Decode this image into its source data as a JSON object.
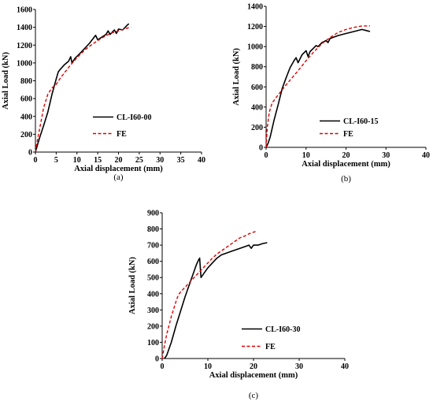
{
  "chart_data": [
    {
      "type": "line",
      "panel_caption": "(a)",
      "xlabel": "Axial displacement (mm)",
      "ylabel": "Axial Load (kN)",
      "xlim": [
        0,
        40
      ],
      "ylim": [
        0,
        1600
      ],
      "xticks": [
        0,
        5,
        10,
        15,
        20,
        25,
        30,
        35,
        40
      ],
      "yticks": [
        0,
        200,
        400,
        600,
        800,
        1000,
        1200,
        1400,
        1600
      ],
      "grid": false,
      "legend_position": "right-center",
      "series": [
        {
          "name": "CL-I60-00",
          "color": "#000000",
          "dash": "solid",
          "points": [
            [
              0,
              0
            ],
            [
              0.5,
              80
            ],
            [
              1,
              160
            ],
            [
              2,
              300
            ],
            [
              3,
              450
            ],
            [
              4,
              650
            ],
            [
              5,
              820
            ],
            [
              5.5,
              900
            ],
            [
              6,
              930
            ],
            [
              7,
              980
            ],
            [
              8,
              1020
            ],
            [
              8.5,
              1070
            ],
            [
              8.8,
              1000
            ],
            [
              9.5,
              1050
            ],
            [
              11,
              1120
            ],
            [
              13,
              1220
            ],
            [
              14.5,
              1310
            ],
            [
              15,
              1260
            ],
            [
              16,
              1290
            ],
            [
              17,
              1320
            ],
            [
              17.5,
              1360
            ],
            [
              18,
              1320
            ],
            [
              19,
              1370
            ],
            [
              19.5,
              1330
            ],
            [
              20,
              1380
            ],
            [
              21,
              1370
            ],
            [
              22,
              1420
            ],
            [
              22.5,
              1440
            ]
          ]
        },
        {
          "name": "FE",
          "color": "#e00000",
          "dash": "dashed",
          "points": [
            [
              0,
              0
            ],
            [
              0.3,
              90
            ],
            [
              1,
              260
            ],
            [
              2,
              500
            ],
            [
              3,
              650
            ],
            [
              4,
              720
            ],
            [
              5,
              760
            ],
            [
              6,
              830
            ],
            [
              8,
              950
            ],
            [
              10,
              1060
            ],
            [
              12,
              1150
            ],
            [
              14,
              1220
            ],
            [
              16,
              1280
            ],
            [
              18,
              1330
            ],
            [
              20,
              1360
            ],
            [
              22,
              1390
            ],
            [
              23,
              1400
            ]
          ]
        }
      ]
    },
    {
      "type": "line",
      "panel_caption": "(b)",
      "xlabel": "Axial displacement (mm)",
      "ylabel": "Axial Load (kN)",
      "xlim": [
        0,
        40
      ],
      "ylim": [
        0,
        1400
      ],
      "xticks": [
        0,
        10,
        20,
        30,
        40
      ],
      "yticks": [
        0,
        200,
        400,
        600,
        800,
        1000,
        1200,
        1400
      ],
      "grid": false,
      "legend_position": "right-center",
      "series": [
        {
          "name": "CL-I60-15",
          "color": "#000000",
          "dash": "solid",
          "points": [
            [
              0,
              0
            ],
            [
              0.5,
              40
            ],
            [
              1,
              100
            ],
            [
              2,
              270
            ],
            [
              3,
              420
            ],
            [
              4,
              580
            ],
            [
              5,
              690
            ],
            [
              6,
              790
            ],
            [
              7,
              860
            ],
            [
              7.5,
              890
            ],
            [
              8,
              840
            ],
            [
              9,
              920
            ],
            [
              10,
              960
            ],
            [
              10.5,
              900
            ],
            [
              11,
              950
            ],
            [
              12,
              990
            ],
            [
              12.5,
              1010
            ],
            [
              13,
              1000
            ],
            [
              14,
              1040
            ],
            [
              15,
              1060
            ],
            [
              15.5,
              1040
            ],
            [
              16,
              1080
            ],
            [
              18,
              1110
            ],
            [
              20,
              1130
            ],
            [
              22,
              1150
            ],
            [
              24,
              1170
            ],
            [
              25,
              1160
            ],
            [
              26,
              1150
            ]
          ]
        },
        {
          "name": "FE",
          "color": "#e00000",
          "dash": "dashed",
          "points": [
            [
              0,
              0
            ],
            [
              0.3,
              200
            ],
            [
              0.8,
              350
            ],
            [
              1.5,
              440
            ],
            [
              3,
              520
            ],
            [
              5,
              620
            ],
            [
              8,
              760
            ],
            [
              10,
              860
            ],
            [
              12,
              950
            ],
            [
              14,
              1030
            ],
            [
              16,
              1090
            ],
            [
              18,
              1140
            ],
            [
              20,
              1170
            ],
            [
              22,
              1190
            ],
            [
              24,
              1205
            ],
            [
              26,
              1205
            ]
          ]
        }
      ]
    },
    {
      "type": "line",
      "panel_caption": "(c)",
      "xlabel": "Axial displacement (mm)",
      "ylabel": "Axial Load  (kN)",
      "xlim": [
        0,
        40
      ],
      "ylim": [
        0,
        900
      ],
      "xticks": [
        0,
        10,
        20,
        30,
        40
      ],
      "yticks": [
        0,
        100,
        200,
        300,
        400,
        500,
        600,
        700,
        800,
        900
      ],
      "grid": false,
      "legend_position": "right-center",
      "series": [
        {
          "name": "CL-I60-30",
          "color": "#000000",
          "dash": "solid",
          "points": [
            [
              0.5,
              0
            ],
            [
              1,
              20
            ],
            [
              2,
              100
            ],
            [
              3,
              200
            ],
            [
              4,
              290
            ],
            [
              5,
              380
            ],
            [
              6,
              460
            ],
            [
              7,
              540
            ],
            [
              7.5,
              580
            ],
            [
              8,
              610
            ],
            [
              8.2,
              620
            ],
            [
              8.5,
              500
            ],
            [
              9,
              520
            ],
            [
              10,
              560
            ],
            [
              11,
              590
            ],
            [
              12,
              620
            ],
            [
              13,
              640
            ],
            [
              14,
              650
            ],
            [
              15,
              660
            ],
            [
              16,
              670
            ],
            [
              17,
              680
            ],
            [
              18,
              690
            ],
            [
              19,
              700
            ],
            [
              19.5,
              680
            ],
            [
              20,
              700
            ],
            [
              21,
              700
            ],
            [
              22,
              710
            ],
            [
              23,
              715
            ]
          ]
        },
        {
          "name": "FE",
          "color": "#e00000",
          "dash": "dashed",
          "points": [
            [
              0,
              0
            ],
            [
              0.5,
              80
            ],
            [
              1,
              150
            ],
            [
              2,
              260
            ],
            [
              3,
              350
            ],
            [
              3.5,
              390
            ],
            [
              4,
              410
            ],
            [
              5,
              440
            ],
            [
              6,
              470
            ],
            [
              7,
              500
            ],
            [
              8,
              530
            ],
            [
              9,
              560
            ],
            [
              10,
              590
            ],
            [
              11,
              620
            ],
            [
              12,
              645
            ],
            [
              13,
              665
            ],
            [
              14,
              685
            ],
            [
              15,
              705
            ],
            [
              16,
              725
            ],
            [
              17,
              745
            ],
            [
              18,
              755
            ],
            [
              19,
              770
            ],
            [
              20,
              780
            ],
            [
              20.5,
              785
            ]
          ]
        }
      ]
    }
  ]
}
